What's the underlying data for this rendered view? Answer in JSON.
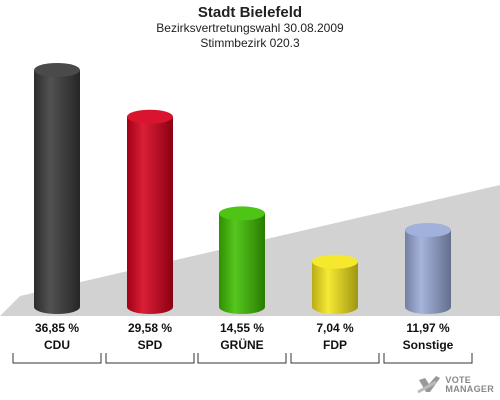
{
  "chart_data": {
    "type": "bar",
    "title": "Stadt Bielefeld",
    "subtitle": "Bezirksvertretungswahl 30.08.2009",
    "subtitle2": "Stimmbezirk 020.3",
    "categories": [
      "CDU",
      "SPD",
      "GRÜNE",
      "FDP",
      "Sonstige"
    ],
    "values": [
      36.85,
      29.58,
      14.55,
      7.04,
      11.97
    ],
    "value_labels": [
      "36,85 %",
      "29,58 %",
      "14,55 %",
      "7,04 %",
      "11,97 %"
    ],
    "colors": [
      "#3a3a3a",
      "#d6001c",
      "#3fbf00",
      "#f5e61a",
      "#9aaad8"
    ],
    "ylim": [
      0,
      40
    ],
    "grid": false,
    "legend": "none"
  },
  "logo": {
    "line1": "VOTE",
    "line2": "MANAGER"
  }
}
